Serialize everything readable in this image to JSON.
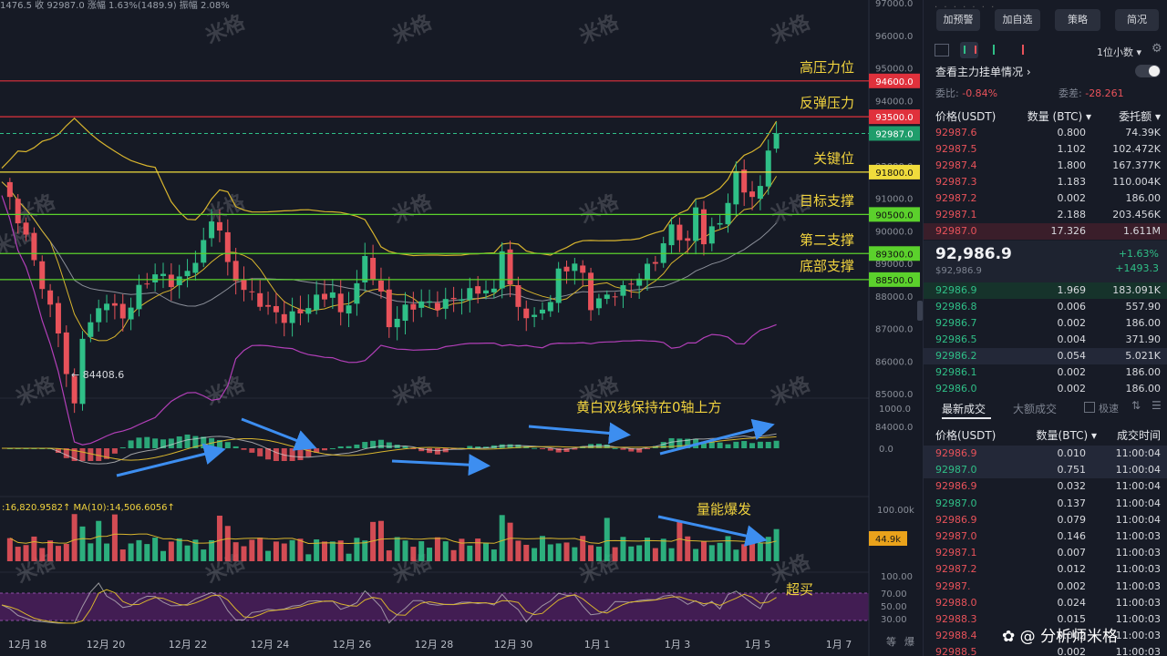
{
  "info_bar": "1476.5  收 92987.0  涨幅 1.63%(1489.9)  振幅 2.08%",
  "watermark": "米格",
  "chart_data": {
    "type": "candlestick",
    "price_axis": [
      "97000.0",
      "96000.0",
      "95000.0",
      "94000.0",
      "93000.0",
      "92000.0",
      "91000.0",
      "90000.0",
      "89000.0",
      "88000.0",
      "87000.0",
      "86000.0",
      "85000.0",
      "84000.0"
    ],
    "date_axis": [
      "12月 18",
      "12月 20",
      "12月 22",
      "12月 24",
      "12月 26",
      "12月 28",
      "12月 30",
      "1月 1",
      "1月 3",
      "1月 5",
      "1月 7"
    ],
    "levels": [
      {
        "label": "高压力位",
        "price": 94600,
        "tag": "94600.0",
        "color": "#e0313c"
      },
      {
        "label": "反弹压力",
        "price": 93500,
        "tag": "93500.0",
        "color": "#e0313c"
      },
      {
        "label": "关键位",
        "price": 91800,
        "tag": "91800.0",
        "color": "#f0dc3c"
      },
      {
        "label": "目标支撑",
        "price": 90500,
        "tag": "90500.0",
        "color": "#5bd12c"
      },
      {
        "label": "第二支撑",
        "price": 89300,
        "tag": "89300.0",
        "color": "#5bd12c"
      },
      {
        "label": "底部支撑",
        "price": 88500,
        "tag": "88500.0",
        "color": "#5bd12c"
      }
    ],
    "last_price": {
      "price": 92987,
      "tag": "92987.0"
    },
    "low_marker": "84408.6",
    "macd_axis": [
      "1000.0",
      "0.0"
    ],
    "macd_note": "黄白双线保持在0轴上方",
    "volume_legend": ":16,820.9582↑  MA(10):14,506.6056↑",
    "volume_axis": "100.00k",
    "volume_tag": "44.9k",
    "volume_note": "量能爆发",
    "rsi_axis": [
      "100.00",
      "70.00",
      "50.00",
      "30.00"
    ],
    "rsi_note": "超买",
    "bottom_right": [
      "等",
      "爆"
    ]
  },
  "panel": {
    "buttons": [
      "加预警",
      "加自选",
      "策略",
      "简况"
    ],
    "decimals": "1位小数",
    "order_watch": "查看主力挂单情况",
    "weibi_label": "委比:",
    "weibi_value": "-0.84%",
    "weicha_label": "委差:",
    "weicha_value": "-28.261",
    "headers": [
      "价格(USDT)",
      "数量 (BTC)",
      "委托额"
    ],
    "asks": [
      {
        "price": "92987.6",
        "qty": "0.800",
        "amt": "74.39K"
      },
      {
        "price": "92987.5",
        "qty": "1.102",
        "amt": "102.472K"
      },
      {
        "price": "92987.4",
        "qty": "1.800",
        "amt": "167.377K"
      },
      {
        "price": "92987.3",
        "qty": "1.183",
        "amt": "110.004K"
      },
      {
        "price": "92987.2",
        "qty": "0.002",
        "amt": "186.00"
      },
      {
        "price": "92987.1",
        "qty": "2.188",
        "amt": "203.456K"
      },
      {
        "price": "92987.0",
        "qty": "17.326",
        "amt": "1.611M"
      }
    ],
    "current_price": "92,986.9",
    "current_sub": "$92,986.9",
    "change_pct": "+1.63%",
    "change_abs": "+1493.3",
    "bids": [
      {
        "price": "92986.9",
        "qty": "1.969",
        "amt": "183.091K"
      },
      {
        "price": "92986.8",
        "qty": "0.006",
        "amt": "557.90"
      },
      {
        "price": "92986.7",
        "qty": "0.002",
        "amt": "186.00"
      },
      {
        "price": "92986.5",
        "qty": "0.004",
        "amt": "371.90"
      },
      {
        "price": "92986.2",
        "qty": "0.054",
        "amt": "5.021K"
      },
      {
        "price": "92986.1",
        "qty": "0.002",
        "amt": "186.00"
      },
      {
        "price": "92986.0",
        "qty": "0.002",
        "amt": "186.00"
      }
    ],
    "trade_tabs": [
      "最新成交",
      "大额成交"
    ],
    "toggle_label": "极速",
    "trade_headers": [
      "价格(USDT)",
      "数量(BTC)",
      "成交时间"
    ],
    "trades": [
      {
        "price": "92986.9",
        "qty": "0.010",
        "time": "11:00:04",
        "side": "sell"
      },
      {
        "price": "92987.0",
        "qty": "0.751",
        "time": "11:00:04",
        "side": "buy"
      },
      {
        "price": "92986.9",
        "qty": "0.032",
        "time": "11:00:04",
        "side": "sell"
      },
      {
        "price": "92987.0",
        "qty": "0.137",
        "time": "11:00:04",
        "side": "buy"
      },
      {
        "price": "92986.9",
        "qty": "0.079",
        "time": "11:00:04",
        "side": "sell"
      },
      {
        "price": "92987.0",
        "qty": "0.146",
        "time": "11:00:03",
        "side": "sell"
      },
      {
        "price": "92987.1",
        "qty": "0.007",
        "time": "11:00:03",
        "side": "sell"
      },
      {
        "price": "92987.2",
        "qty": "0.012",
        "time": "11:00:03",
        "side": "sell"
      },
      {
        "price": "92987.",
        "qty": "0.002",
        "time": "11:00:03",
        "side": "sell"
      },
      {
        "price": "92988.0",
        "qty": "0.024",
        "time": "11:00:03",
        "side": "sell"
      },
      {
        "price": "92988.3",
        "qty": "0.015",
        "time": "11:00:03",
        "side": "sell"
      },
      {
        "price": "92988.4",
        "qty": "0.002",
        "time": "11:00:03",
        "side": "sell"
      },
      {
        "price": "92988.5",
        "qty": "0.002",
        "time": "11:00:03",
        "side": "sell"
      }
    ],
    "footer": "分析师米格"
  }
}
